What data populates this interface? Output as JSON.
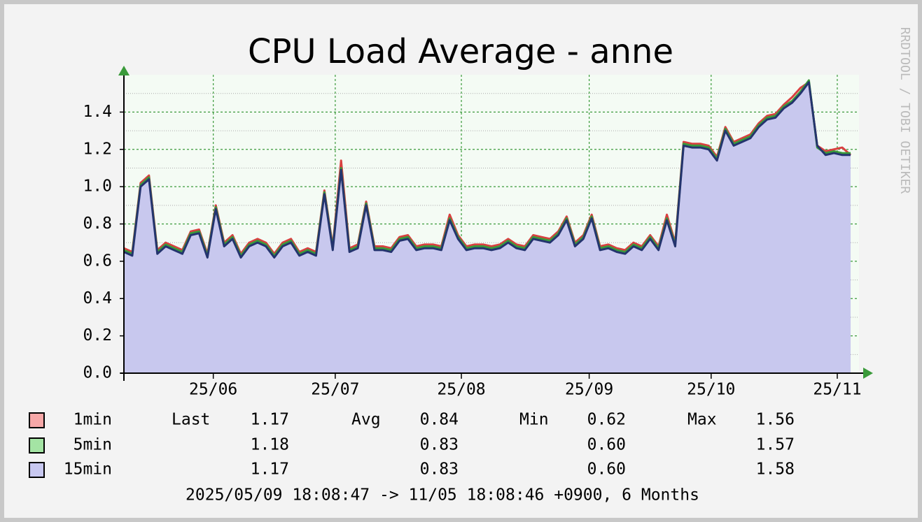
{
  "chart_data": {
    "type": "area",
    "title": "CPU Load Average - anne",
    "watermark": "RRDTOOL / TOBI OETIKER",
    "footer": "2025/05/09 18:08:47 -> 11/05 18:08:46 +0900, 6 Months",
    "xlim": [
      0,
      88
    ],
    "xticks": [
      {
        "value": 10.7,
        "label": "25/06"
      },
      {
        "value": 25.3,
        "label": "25/07"
      },
      {
        "value": 40.4,
        "label": "25/08"
      },
      {
        "value": 55.7,
        "label": "25/09"
      },
      {
        "value": 70.3,
        "label": "25/10"
      },
      {
        "value": 85.4,
        "label": "25/11"
      }
    ],
    "ylim": [
      0,
      1.6
    ],
    "yticks": [
      {
        "value": 0,
        "label": "0.0"
      },
      {
        "value": 0.2,
        "label": "0.2"
      },
      {
        "value": 0.4,
        "label": "0.4"
      },
      {
        "value": 0.6,
        "label": "0.6"
      },
      {
        "value": 0.8,
        "label": "0.8"
      },
      {
        "value": 1.0,
        "label": "1.0"
      },
      {
        "value": 1.2,
        "label": "1.2"
      },
      {
        "value": 1.4,
        "label": "1.4"
      }
    ],
    "yminorticks": [
      0.1,
      0.3,
      0.5,
      0.7,
      0.9,
      1.1,
      1.3,
      1.5
    ],
    "grid": true,
    "series": [
      {
        "name": "1min",
        "color": "#d94040",
        "swatch": "#f7a8a8",
        "values": [
          0.67,
          0.65,
          1.02,
          1.06,
          0.66,
          0.7,
          0.68,
          0.66,
          0.76,
          0.77,
          0.64,
          0.9,
          0.7,
          0.74,
          0.64,
          0.7,
          0.72,
          0.7,
          0.64,
          0.7,
          0.72,
          0.65,
          0.67,
          0.65,
          0.98,
          0.68,
          1.14,
          0.67,
          0.69,
          0.92,
          0.68,
          0.68,
          0.67,
          0.73,
          0.74,
          0.68,
          0.69,
          0.69,
          0.68,
          0.85,
          0.74,
          0.68,
          0.69,
          0.69,
          0.68,
          0.69,
          0.72,
          0.69,
          0.68,
          0.74,
          0.73,
          0.72,
          0.76,
          0.84,
          0.7,
          0.74,
          0.85,
          0.68,
          0.69,
          0.67,
          0.66,
          0.7,
          0.68,
          0.74,
          0.68,
          0.85,
          0.7,
          1.24,
          1.23,
          1.23,
          1.22,
          1.16,
          1.32,
          1.24,
          1.26,
          1.28,
          1.34,
          1.38,
          1.39,
          1.44,
          1.48,
          1.53,
          1.56,
          1.22,
          1.19,
          1.2,
          1.21,
          1.17
        ]
      },
      {
        "name": "5min",
        "color": "#3a9a3a",
        "swatch": "#a4e4a4",
        "values": [
          0.66,
          0.64,
          1.01,
          1.05,
          0.65,
          0.69,
          0.67,
          0.65,
          0.75,
          0.76,
          0.63,
          0.89,
          0.69,
          0.73,
          0.63,
          0.69,
          0.71,
          0.69,
          0.63,
          0.69,
          0.71,
          0.64,
          0.66,
          0.64,
          0.97,
          0.67,
          1.1,
          0.66,
          0.68,
          0.91,
          0.67,
          0.67,
          0.66,
          0.72,
          0.73,
          0.67,
          0.68,
          0.68,
          0.67,
          0.83,
          0.73,
          0.67,
          0.68,
          0.68,
          0.67,
          0.68,
          0.71,
          0.68,
          0.67,
          0.73,
          0.72,
          0.71,
          0.75,
          0.83,
          0.69,
          0.73,
          0.84,
          0.67,
          0.68,
          0.66,
          0.65,
          0.69,
          0.67,
          0.73,
          0.67,
          0.83,
          0.69,
          1.23,
          1.22,
          1.22,
          1.21,
          1.15,
          1.31,
          1.23,
          1.25,
          1.27,
          1.33,
          1.37,
          1.38,
          1.43,
          1.46,
          1.51,
          1.57,
          1.21,
          1.18,
          1.19,
          1.18,
          1.18
        ]
      },
      {
        "name": "15min",
        "color": "#24346e",
        "swatch": "#c8c8f0",
        "fill": "#c8c8ee",
        "values": [
          0.65,
          0.63,
          1.0,
          1.04,
          0.64,
          0.68,
          0.66,
          0.64,
          0.74,
          0.75,
          0.62,
          0.88,
          0.68,
          0.72,
          0.62,
          0.68,
          0.7,
          0.68,
          0.62,
          0.68,
          0.7,
          0.63,
          0.65,
          0.63,
          0.96,
          0.66,
          1.09,
          0.65,
          0.67,
          0.9,
          0.66,
          0.66,
          0.65,
          0.71,
          0.72,
          0.66,
          0.67,
          0.67,
          0.66,
          0.82,
          0.72,
          0.66,
          0.67,
          0.67,
          0.66,
          0.67,
          0.7,
          0.67,
          0.66,
          0.72,
          0.71,
          0.7,
          0.74,
          0.82,
          0.68,
          0.72,
          0.83,
          0.66,
          0.67,
          0.65,
          0.64,
          0.68,
          0.66,
          0.72,
          0.66,
          0.82,
          0.68,
          1.22,
          1.21,
          1.21,
          1.2,
          1.14,
          1.3,
          1.22,
          1.24,
          1.26,
          1.32,
          1.36,
          1.37,
          1.42,
          1.45,
          1.5,
          1.56,
          1.22,
          1.17,
          1.18,
          1.17,
          1.17
        ]
      }
    ],
    "legend": {
      "columns": [
        "Last",
        "Avg",
        "Min",
        "Max"
      ],
      "rows": [
        [
          "1.17",
          "0.84",
          "0.62",
          "1.56"
        ],
        [
          "1.18",
          "0.83",
          "0.60",
          "1.57"
        ],
        [
          "1.17",
          "0.83",
          "0.60",
          "1.58"
        ]
      ]
    }
  }
}
